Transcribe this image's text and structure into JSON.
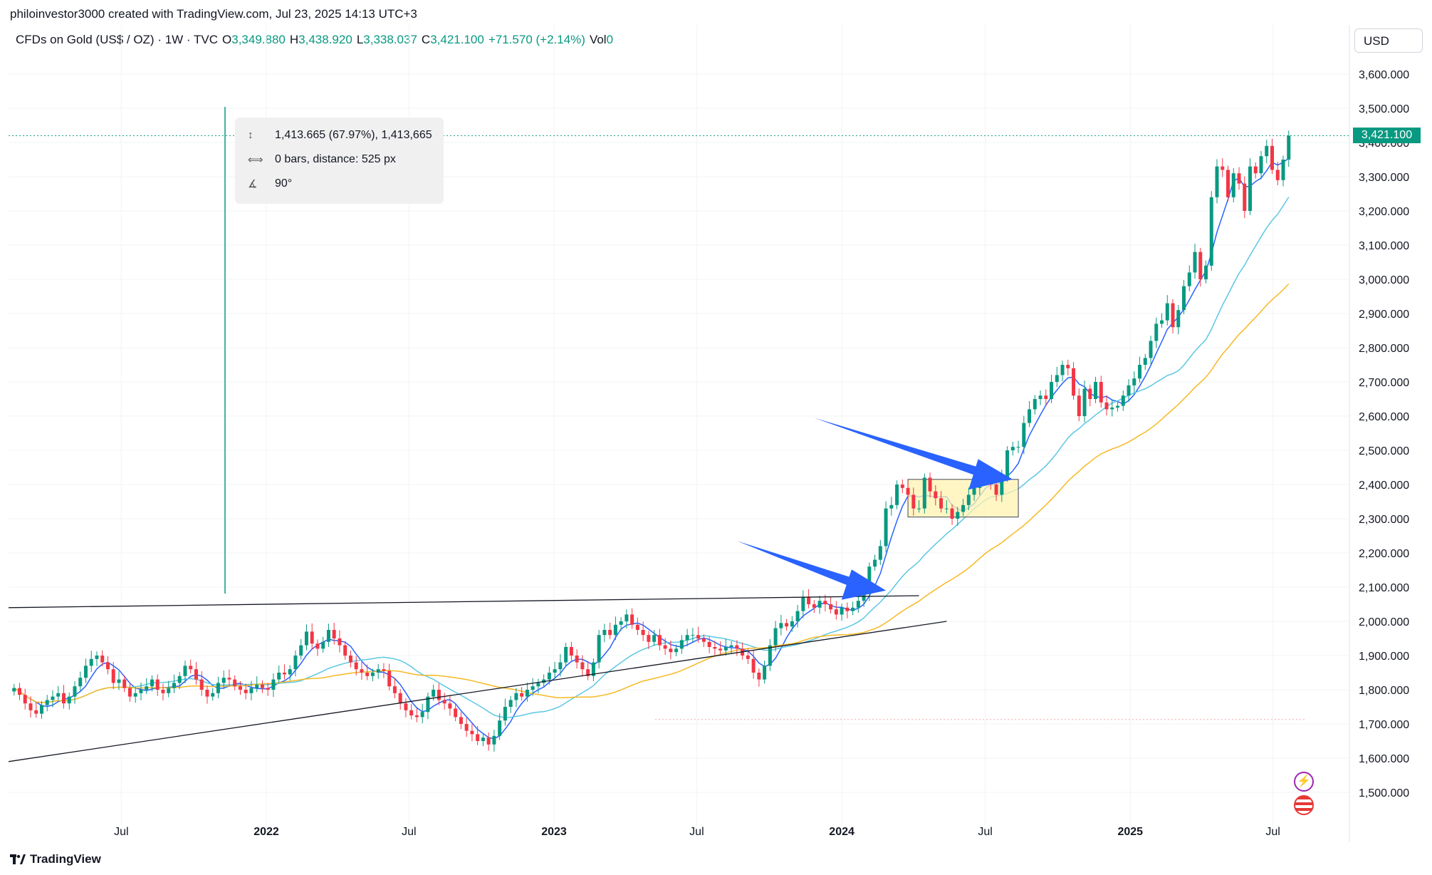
{
  "header": {
    "attribution": "philoinvestor3000 created with TradingView.com, Jul 23, 2025 14:13 UTC+3"
  },
  "legend": {
    "symbol": "CFDs on Gold (US$ / OZ) · 1W · TVC",
    "o_label": "O",
    "o_value": "3,349.880",
    "h_label": "H",
    "h_value": "3,438.920",
    "l_label": "L",
    "l_value": "3,338.037",
    "c_label": "C",
    "c_value": "3,421.100",
    "change": "+71.570 (+2.14%)",
    "vol_label": "Vol",
    "vol_value": "0"
  },
  "currency_button": "USD",
  "current_price_tag": "3,421.100",
  "measure": {
    "price_range": "1,413.665 (67.97%), 1,413,665",
    "bars": "0 bars, distance: 525 px",
    "angle": "90°"
  },
  "footer": {
    "brand": "TradingView"
  },
  "icons": [
    "price-range-icon",
    "bars-range-icon",
    "angle-icon",
    "lightning-icon",
    "us-flag-icon",
    "tradingview-logo-icon"
  ],
  "colors": {
    "up": "#089981",
    "down": "#f23645",
    "ma_fast": "#2962ff",
    "ma_mid": "#5cc7e3",
    "ma_slow": "#f7b924",
    "arrow": "#2962ff",
    "box": "#fff3b0"
  },
  "chart_data": {
    "type": "candlestick",
    "title": "CFDs on Gold (US$ / OZ) · 1W · TVC",
    "y_tick_labels": [
      "1,500.000",
      "1,600.000",
      "1,700.000",
      "1,800.000",
      "1,900.000",
      "2,000.000",
      "2,100.000",
      "2,200.000",
      "2,300.000",
      "2,400.000",
      "2,500.000",
      "2,600.000",
      "2,700.000",
      "2,800.000",
      "2,900.000",
      "3,000.000",
      "3,100.000",
      "3,200.000",
      "3,300.000",
      "3,400.000",
      "3,500.000",
      "3,600.000"
    ],
    "y_ticks": [
      1500,
      1600,
      1700,
      1800,
      1900,
      2000,
      2100,
      2200,
      2300,
      2400,
      2500,
      2600,
      2700,
      2800,
      2900,
      3000,
      3100,
      3200,
      3300,
      3400,
      3500,
      3600
    ],
    "ylim": [
      1400,
      3650
    ],
    "x_tick_labels": [
      "Jul",
      "2022",
      "Jul",
      "2023",
      "Jul",
      "2024",
      "Jul",
      "2025",
      "Jul"
    ],
    "x_ticks": [
      "2021-07-01",
      "2022-01-01",
      "2022-07-01",
      "2023-01-01",
      "2023-07-01",
      "2024-01-01",
      "2024-07-01",
      "2025-01-01",
      "2025-07-01"
    ],
    "xlim": [
      "2021-02-08",
      "2025-10-06"
    ],
    "closes": [
      1805,
      1785,
      1760,
      1740,
      1730,
      1755,
      1770,
      1780,
      1790,
      1760,
      1780,
      1810,
      1835,
      1870,
      1890,
      1900,
      1880,
      1860,
      1820,
      1830,
      1805,
      1780,
      1790,
      1800,
      1810,
      1830,
      1800,
      1790,
      1805,
      1820,
      1840,
      1870,
      1860,
      1830,
      1800,
      1780,
      1790,
      1820,
      1835,
      1830,
      1810,
      1800,
      1790,
      1805,
      1815,
      1805,
      1800,
      1830,
      1850,
      1845,
      1860,
      1900,
      1930,
      1970,
      1935,
      1920,
      1940,
      1975,
      1950,
      1930,
      1900,
      1880,
      1860,
      1850,
      1840,
      1850,
      1860,
      1855,
      1810,
      1790,
      1760,
      1740,
      1725,
      1720,
      1735,
      1780,
      1800,
      1770,
      1760,
      1745,
      1720,
      1700,
      1680,
      1670,
      1650,
      1660,
      1640,
      1665,
      1710,
      1750,
      1770,
      1790,
      1780,
      1800,
      1810,
      1820,
      1830,
      1850,
      1860,
      1880,
      1925,
      1900,
      1880,
      1860,
      1840,
      1880,
      1960,
      1975,
      1960,
      1990,
      2000,
      2020,
      1990,
      1975,
      1960,
      1940,
      1960,
      1930,
      1920,
      1910,
      1920,
      1945,
      1960,
      1960,
      1950,
      1940,
      1925,
      1920,
      1915,
      1925,
      1930,
      1920,
      1900,
      1890,
      1850,
      1830,
      1870,
      1930,
      1980,
      1995,
      1985,
      2000,
      2030,
      2070,
      2050,
      2040,
      2060,
      2050,
      2035,
      2020,
      2040,
      2030,
      2040,
      2060,
      2080,
      2160,
      2180,
      2220,
      2330,
      2340,
      2400,
      2390,
      2370,
      2330,
      2330,
      2420,
      2380,
      2360,
      2330,
      2330,
      2300,
      2320,
      2340,
      2370,
      2390,
      2410,
      2430,
      2400,
      2370,
      2420,
      2500,
      2510,
      2510,
      2580,
      2620,
      2650,
      2660,
      2650,
      2700,
      2720,
      2750,
      2740,
      2660,
      2600,
      2680,
      2650,
      2700,
      2640,
      2620,
      2625,
      2630,
      2660,
      2690,
      2710,
      2750,
      2770,
      2820,
      2870,
      2880,
      2930,
      2860,
      2910,
      2980,
      3020,
      3080,
      3000,
      3040,
      3240,
      3330,
      3320,
      3240,
      3310,
      3280,
      3200,
      3330,
      3310,
      3360,
      3390,
      3320,
      3290,
      3350,
      3420
    ],
    "annotations": [
      {
        "type": "trendline",
        "from": [
          "2021-02-08",
          2040
        ],
        "to": [
          "2024-04-08",
          2075
        ],
        "label": ""
      },
      {
        "type": "trendline",
        "from": [
          "2021-02-08",
          1590
        ],
        "to": [
          "2024-05-13",
          2000
        ],
        "label": ""
      },
      {
        "type": "arrow",
        "from": [
          "2023-08-21",
          2235
        ],
        "to": [
          "2024-02-26",
          2090
        ]
      },
      {
        "type": "arrow",
        "from": [
          "2023-11-27",
          2595
        ],
        "to": [
          "2024-08-05",
          2415
        ]
      },
      {
        "type": "box",
        "from": [
          "2024-03-25",
          2305
        ],
        "to": [
          "2024-08-12",
          2415
        ]
      }
    ]
  }
}
